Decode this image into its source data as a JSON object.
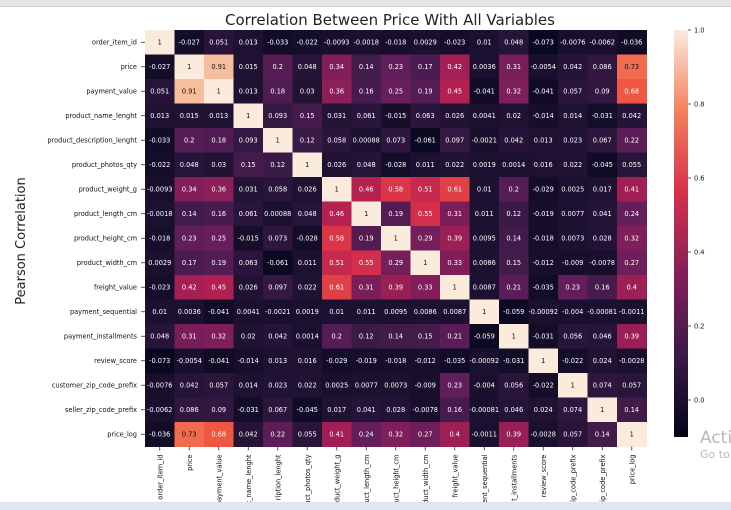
{
  "chart_data": {
    "type": "heatmap",
    "title": "Correlation Between Price With All Variables",
    "ylabel": "Pearson Correlation",
    "labels": [
      "order_item_id",
      "price",
      "payment_value",
      "product_name_lenght",
      "product_description_lenght",
      "product_photos_qty",
      "product_weight_g",
      "product_length_cm",
      "product_height_cm",
      "product_width_cm",
      "freight_value",
      "payment_sequential",
      "payment_installments",
      "review_score",
      "customer_zip_code_prefix",
      "seller_zip_code_prefix",
      "price_log"
    ],
    "matrix": [
      [
        1,
        -0.027,
        0.051,
        0.013,
        -0.033,
        -0.022,
        -0.0093,
        -0.0018,
        -0.018,
        0.0029,
        -0.023,
        0.01,
        0.048,
        -0.073,
        -0.0076,
        -0.0062,
        -0.036
      ],
      [
        -0.027,
        1,
        0.91,
        0.015,
        0.2,
        0.048,
        0.34,
        0.14,
        0.23,
        0.17,
        0.42,
        0.0036,
        0.31,
        -0.0054,
        0.042,
        0.086,
        0.73
      ],
      [
        0.051,
        0.91,
        1,
        0.013,
        0.18,
        0.03,
        0.36,
        0.16,
        0.25,
        0.19,
        0.45,
        -0.041,
        0.32,
        -0.041,
        0.057,
        0.09,
        0.68
      ],
      [
        0.013,
        0.015,
        0.013,
        1,
        0.093,
        0.15,
        0.031,
        0.061,
        -0.015,
        0.063,
        0.026,
        0.0041,
        0.02,
        -0.014,
        0.014,
        -0.031,
        0.042
      ],
      [
        -0.033,
        0.2,
        0.18,
        0.093,
        1,
        0.12,
        0.058,
        0.00088,
        0.073,
        -0.061,
        0.097,
        -0.0021,
        0.042,
        0.013,
        0.023,
        0.067,
        0.22
      ],
      [
        -0.022,
        0.048,
        0.03,
        0.15,
        0.12,
        1,
        0.026,
        0.048,
        -0.028,
        0.011,
        0.022,
        0.0019,
        0.0014,
        0.016,
        0.022,
        -0.045,
        0.055
      ],
      [
        -0.0093,
        0.34,
        0.36,
        0.031,
        0.058,
        0.026,
        1,
        0.46,
        0.58,
        0.51,
        0.61,
        0.01,
        0.2,
        -0.029,
        0.0025,
        0.017,
        0.41
      ],
      [
        -0.0018,
        0.14,
        0.16,
        0.061,
        0.00088,
        0.048,
        0.46,
        1,
        0.19,
        0.55,
        0.31,
        0.011,
        0.12,
        -0.019,
        0.0077,
        0.041,
        0.24
      ],
      [
        -0.018,
        0.23,
        0.25,
        -0.015,
        0.073,
        -0.028,
        0.58,
        0.19,
        1,
        0.29,
        0.39,
        0.0095,
        0.14,
        -0.018,
        0.0073,
        0.028,
        0.32
      ],
      [
        0.0029,
        0.17,
        0.19,
        0.063,
        -0.061,
        0.011,
        0.51,
        0.55,
        0.29,
        1,
        0.33,
        0.0086,
        0.15,
        -0.012,
        -0.009,
        -0.0078,
        0.27
      ],
      [
        -0.023,
        0.42,
        0.45,
        0.026,
        0.097,
        0.022,
        0.61,
        0.31,
        0.39,
        0.33,
        1,
        0.0087,
        0.21,
        -0.035,
        0.23,
        0.16,
        0.4
      ],
      [
        0.01,
        0.0036,
        -0.041,
        0.0041,
        -0.0021,
        0.0019,
        0.01,
        0.011,
        0.0095,
        0.0086,
        0.0087,
        1,
        -0.059,
        -0.00092,
        -0.004,
        -0.00081,
        -0.0011
      ],
      [
        0.048,
        0.31,
        0.32,
        0.02,
        0.042,
        0.0014,
        0.2,
        0.12,
        0.14,
        0.15,
        0.21,
        -0.059,
        1,
        -0.031,
        0.056,
        0.046,
        0.39
      ],
      [
        -0.073,
        -0.0054,
        -0.041,
        -0.014,
        0.013,
        0.016,
        -0.029,
        -0.019,
        -0.018,
        -0.012,
        -0.035,
        -0.00092,
        -0.031,
        1,
        -0.022,
        0.024,
        -0.0028
      ],
      [
        -0.0076,
        0.042,
        0.057,
        0.014,
        0.023,
        0.022,
        0.0025,
        0.0077,
        0.0073,
        -0.009,
        0.23,
        -0.004,
        0.056,
        -0.022,
        1,
        0.074,
        0.057
      ],
      [
        -0.0062,
        0.086,
        0.09,
        -0.031,
        0.067,
        -0.045,
        0.017,
        0.041,
        0.028,
        -0.0078,
        0.16,
        -0.00081,
        0.046,
        0.024,
        0.074,
        1,
        0.14
      ],
      [
        -0.036,
        0.73,
        0.68,
        0.042,
        0.22,
        0.055,
        0.41,
        0.24,
        0.32,
        0.27,
        0.4,
        -0.0011,
        0.39,
        -0.0028,
        0.057,
        0.14,
        1
      ]
    ],
    "colorbar": {
      "range": [
        -0.1,
        1.0
      ],
      "ticks": [
        "1.0",
        "0.8",
        "0.6",
        "0.4",
        "0.2",
        "0.0"
      ],
      "tick_values": [
        1.0,
        0.8,
        0.6,
        0.4,
        0.2,
        0.0
      ]
    },
    "colormap": "rocket",
    "legend": "colorbar-right",
    "grid": false
  },
  "watermark": {
    "title": "Activate Windows",
    "subtitle": "Go to Settings to activate Windows."
  }
}
